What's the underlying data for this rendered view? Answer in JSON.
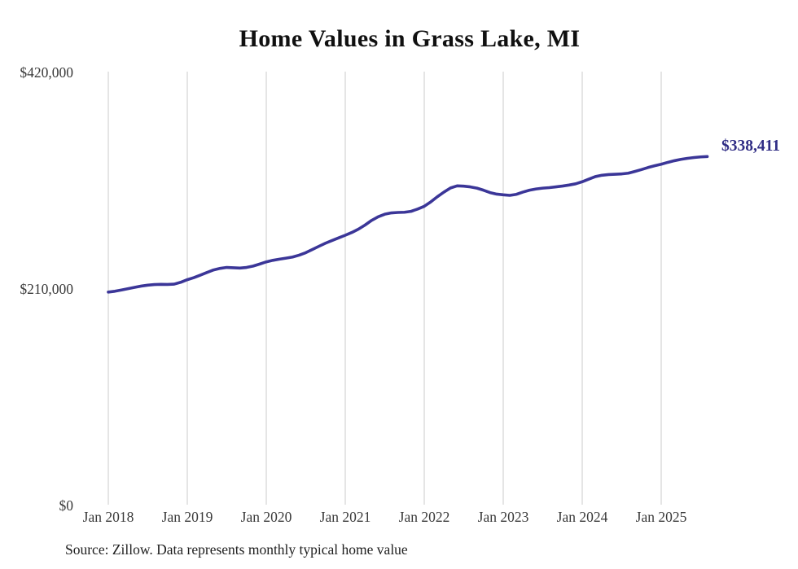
{
  "title": "Home Values in Grass Lake, MI",
  "source_note": "Source: Zillow. Data represents monthly typical home value",
  "colors": {
    "line": "#3b3698",
    "end_label_text": "#302d85",
    "gridline": "#cbcbcb",
    "axis_text": "#3a3a3a",
    "title_text": "#101010",
    "background": "#ffffff"
  },
  "chart_data": {
    "type": "line",
    "title": "Home Values in Grass Lake, MI",
    "xlabel": "",
    "ylabel": "",
    "unit": "USD",
    "frequency": "monthly",
    "start_month": "2018-01",
    "end_month": "2025-08",
    "ylim": [
      0,
      420000
    ],
    "grid": "vertical-only",
    "legend": "none",
    "y_ticks": [
      {
        "label": "$0",
        "value": 0
      },
      {
        "label": "$210,000",
        "value": 210000
      },
      {
        "label": "$420,000",
        "value": 420000
      }
    ],
    "x_ticks": [
      {
        "label": "Jan 2018",
        "month_index": 0
      },
      {
        "label": "Jan 2019",
        "month_index": 12
      },
      {
        "label": "Jan 2020",
        "month_index": 24
      },
      {
        "label": "Jan 2021",
        "month_index": 36
      },
      {
        "label": "Jan 2022",
        "month_index": 48
      },
      {
        "label": "Jan 2023",
        "month_index": 60
      },
      {
        "label": "Jan 2024",
        "month_index": 72
      },
      {
        "label": "Jan 2025",
        "month_index": 84
      }
    ],
    "series": [
      {
        "name": "Typical home value",
        "values": [
          207000,
          207800,
          209000,
          210300,
          211600,
          212800,
          213700,
          214300,
          214500,
          214400,
          214700,
          216500,
          219000,
          221000,
          223500,
          226000,
          228500,
          230000,
          230900,
          230600,
          230300,
          230900,
          232200,
          234200,
          236300,
          237800,
          238900,
          239900,
          241000,
          242800,
          245200,
          248300,
          251400,
          254400,
          257000,
          259600,
          262100,
          264800,
          268000,
          272000,
          276500,
          280000,
          282500,
          283800,
          284200,
          284400,
          285300,
          287500,
          290200,
          294500,
          299500,
          304000,
          308000,
          310000,
          309700,
          309000,
          307800,
          305800,
          303500,
          302000,
          301300,
          300800,
          301800,
          304000,
          305800,
          307000,
          307800,
          308300,
          309000,
          309800,
          310800,
          312000,
          314000,
          316500,
          319000,
          320300,
          321000,
          321300,
          321600,
          322300,
          324000,
          325800,
          327800,
          329500,
          331000,
          332800,
          334400,
          335700,
          336700,
          337500,
          338100,
          338411
        ]
      }
    ],
    "end_label": "$338,411",
    "end_value": 338411
  }
}
